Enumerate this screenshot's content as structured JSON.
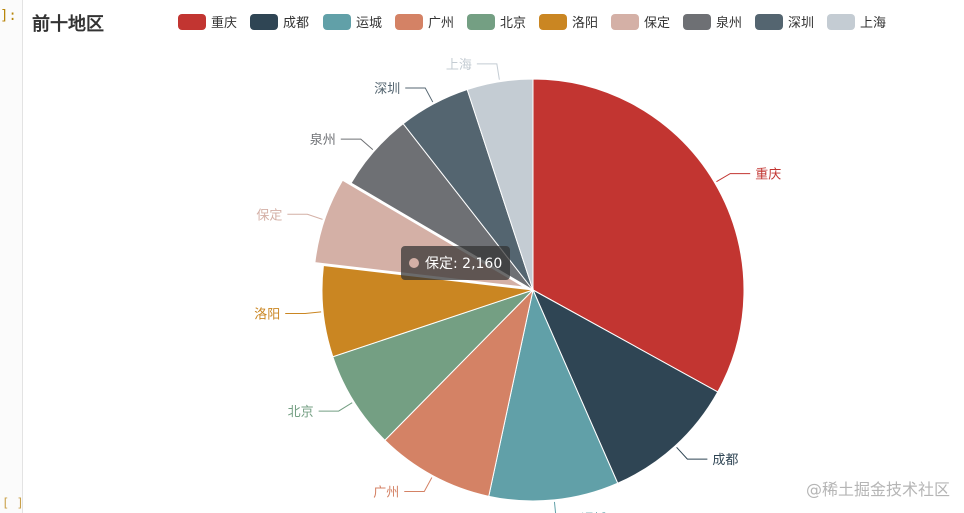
{
  "page": {
    "prompt_mark": "]:",
    "bracket_mark": "[ ]",
    "watermark": "@稀土掘金技术社区"
  },
  "tooltip": {
    "name": "保定",
    "value": "2,160",
    "text": "保定: 2,160",
    "color": "#d4b0a6"
  },
  "chart_data": {
    "type": "pie",
    "title": "前十地区",
    "legend_position": "top",
    "highlighted": "保定",
    "slices": [
      {
        "name": "重庆",
        "value": 10800,
        "color": "#c23531"
      },
      {
        "name": "成都",
        "value": 3400,
        "color": "#2f4554"
      },
      {
        "name": "运城",
        "value": 3250,
        "color": "#61a0a8"
      },
      {
        "name": "广州",
        "value": 2950,
        "color": "#d48265"
      },
      {
        "name": "北京",
        "value": 2450,
        "color": "#749f83"
      },
      {
        "name": "洛阳",
        "value": 2280,
        "color": "#ca8622"
      },
      {
        "name": "保定",
        "value": 2160,
        "color": "#d4b0a6"
      },
      {
        "name": "泉州",
        "value": 1960,
        "color": "#6e7074"
      },
      {
        "name": "深圳",
        "value": 1800,
        "color": "#546570"
      },
      {
        "name": "上海",
        "value": 1650,
        "color": "#c4ccd3"
      }
    ]
  }
}
